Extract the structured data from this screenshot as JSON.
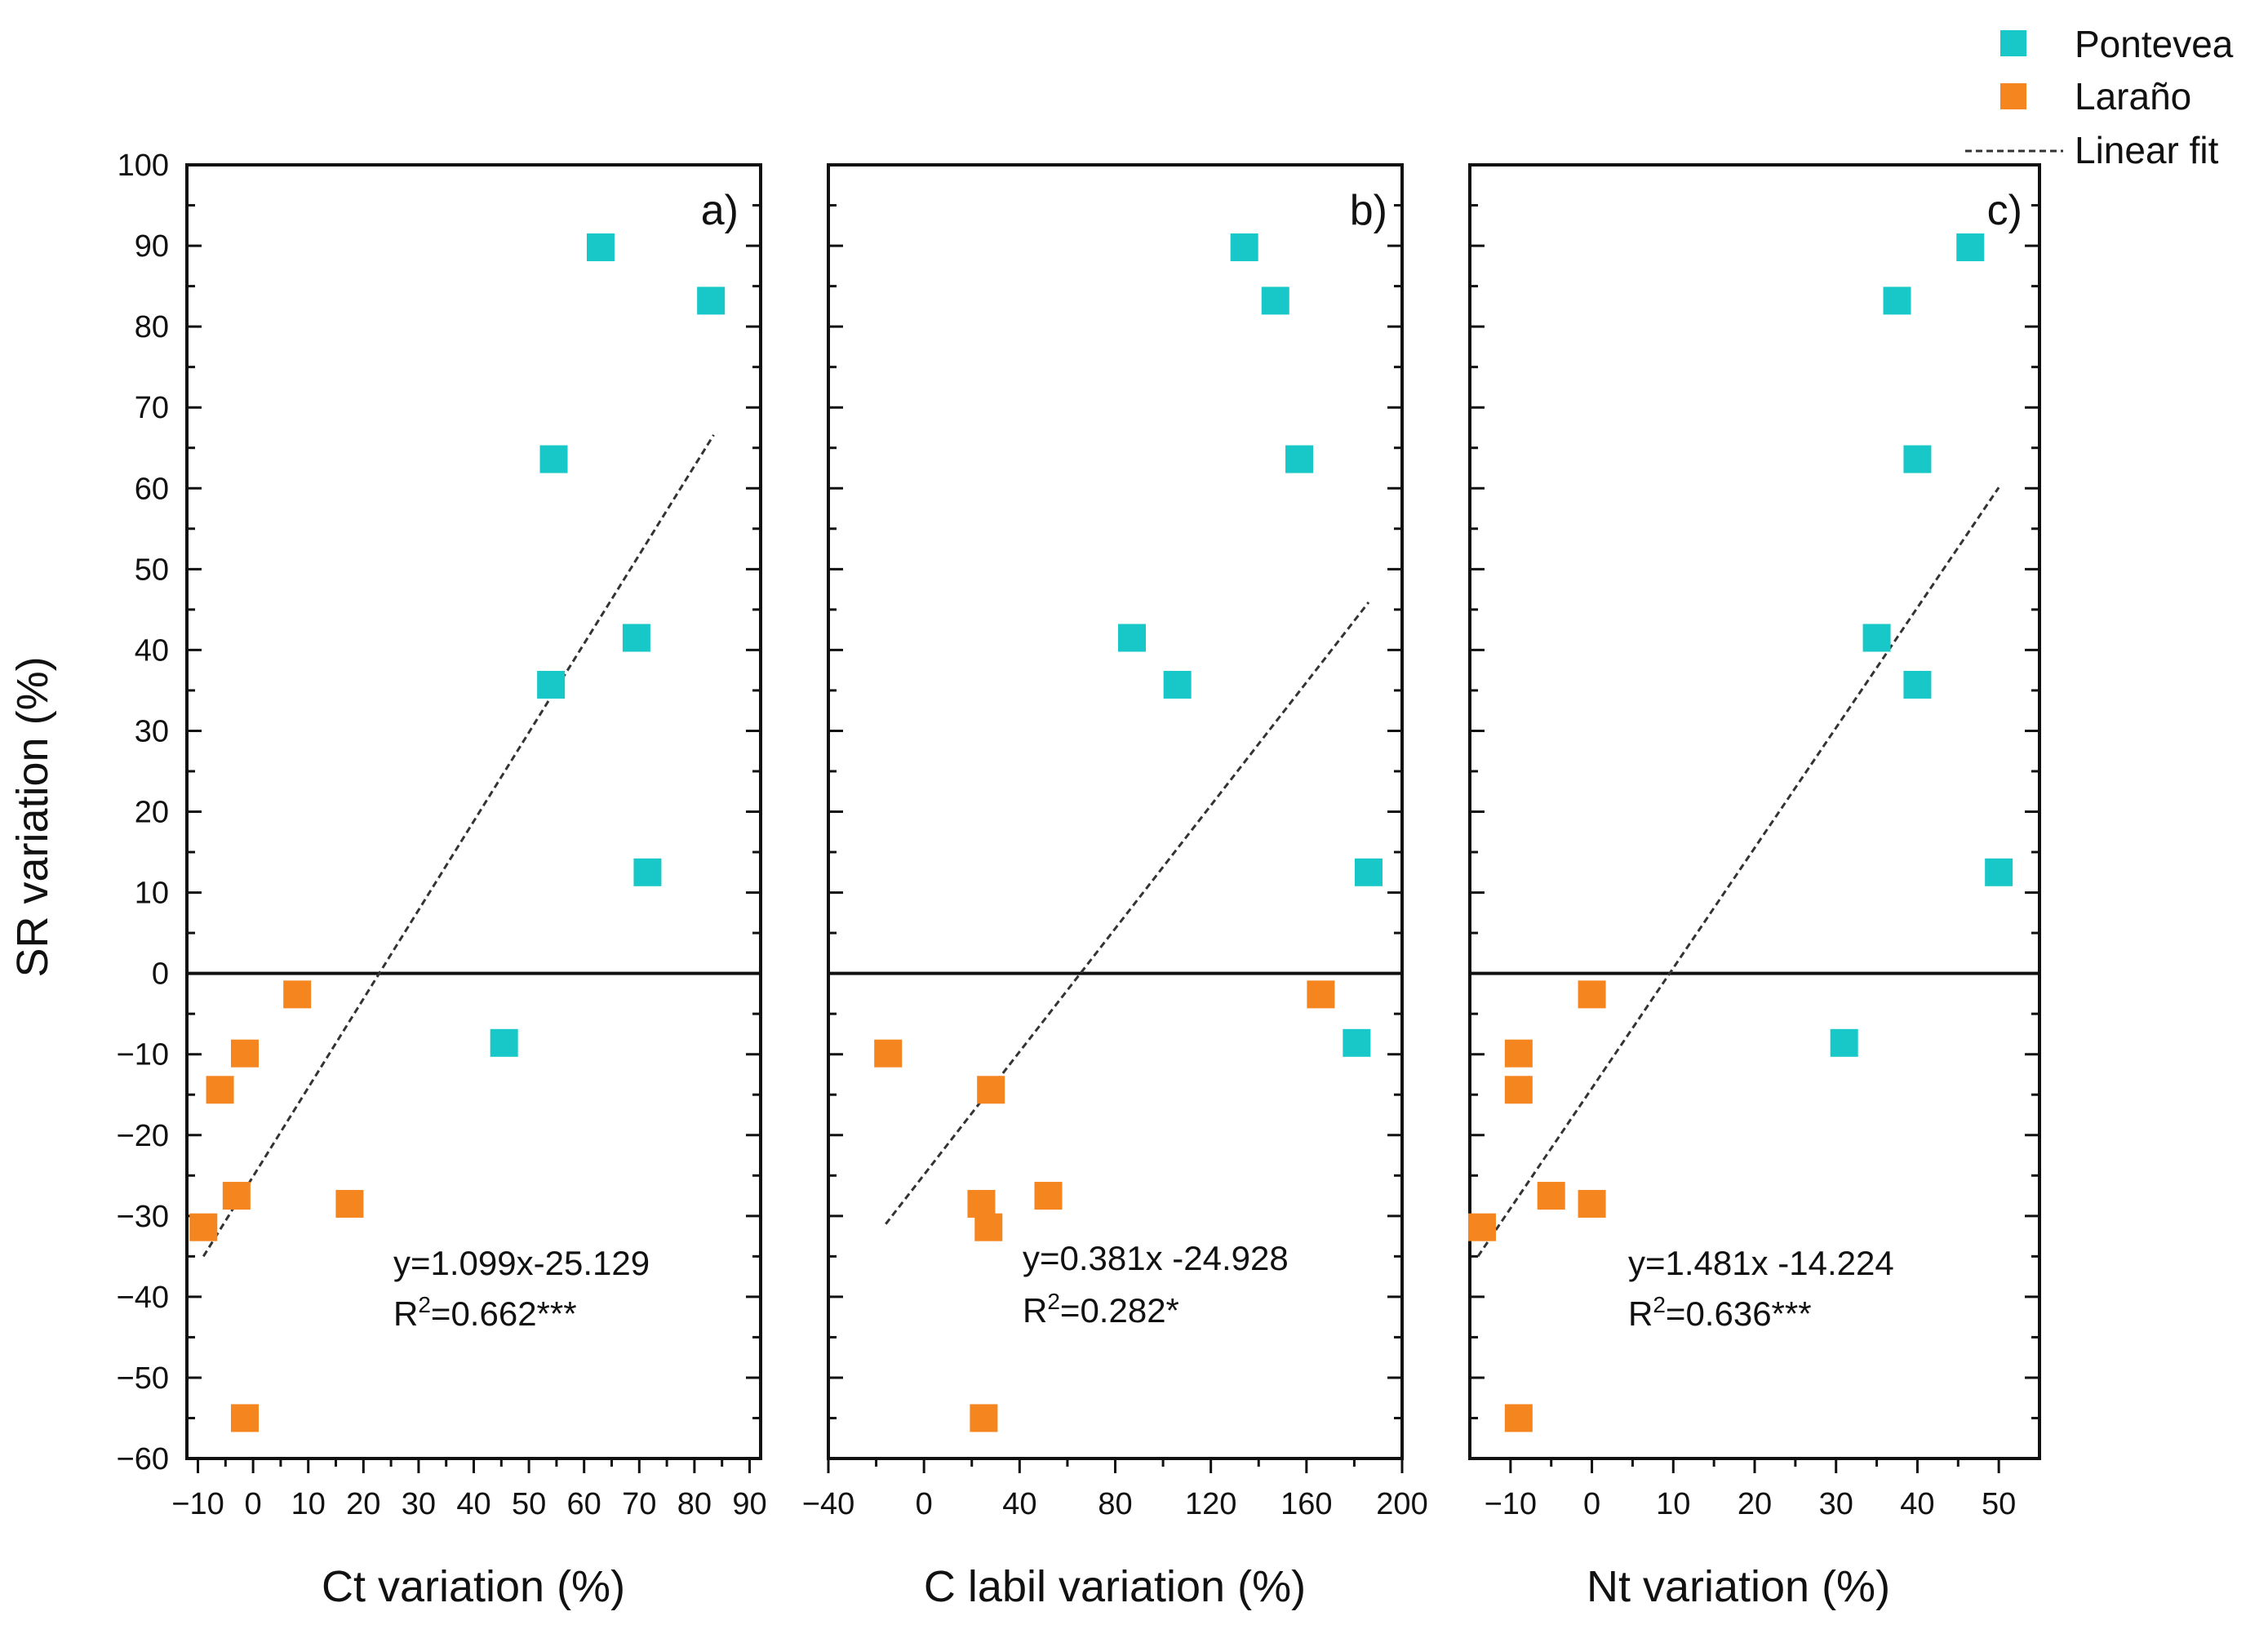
{
  "colors": {
    "pontevea": "#18c8c8",
    "larano": "#f5851f",
    "axis": "#111111",
    "fit": "#333333"
  },
  "legend": {
    "entries": [
      {
        "label": "Pontevea",
        "type": "marker",
        "color": "#18c8c8"
      },
      {
        "label": "Laraño",
        "type": "marker",
        "color": "#f5851f"
      },
      {
        "label": "Linear fit",
        "type": "dashed-line",
        "color": "#333333"
      }
    ]
  },
  "y_axis": {
    "label": "SR variation (%)",
    "ylim": [
      -60,
      100
    ],
    "ticks": [
      -60,
      -50,
      -40,
      -30,
      -20,
      -10,
      0,
      10,
      20,
      30,
      40,
      50,
      60,
      70,
      80,
      90,
      100
    ],
    "tick_labels": [
      "−60",
      "−50",
      "−40",
      "−30",
      "−20",
      "−10",
      "0",
      "10",
      "20",
      "30",
      "40",
      "50",
      "60",
      "70",
      "80",
      "90",
      "100"
    ]
  },
  "chart_data": [
    {
      "type": "scatter",
      "panel_label": "a)",
      "xlabel": "Ct variation (%)",
      "ylabel": "SR variation (%)",
      "xlim": [
        -12,
        92
      ],
      "ylim": [
        -60,
        100
      ],
      "xticks": [
        -10,
        0,
        10,
        20,
        30,
        40,
        50,
        60,
        70,
        80,
        90
      ],
      "xtick_labels": [
        "−10",
        "0",
        "10",
        "20",
        "30",
        "40",
        "50",
        "60",
        "70",
        "80",
        "90"
      ],
      "series": [
        {
          "name": "Pontevea",
          "color": "#18c8c8",
          "points": [
            [
              63,
              89.8
            ],
            [
              83,
              83.2
            ],
            [
              54.5,
              63.6
            ],
            [
              69.5,
              41.5
            ],
            [
              54,
              35.7
            ],
            [
              71.5,
              12.5
            ],
            [
              45.5,
              -8.6
            ]
          ]
        },
        {
          "name": "Laraño",
          "color": "#f5851f",
          "points": [
            [
              8,
              -2.6
            ],
            [
              -1.5,
              -9.9
            ],
            [
              -6,
              -14.4
            ],
            [
              -3,
              -27.5
            ],
            [
              -9,
              -31.4
            ],
            [
              17.5,
              -28.5
            ],
            [
              -1.5,
              -55
            ]
          ]
        }
      ],
      "fit": {
        "x_range": [
          -9,
          83.5
        ],
        "y_range": [
          -35,
          66.6
        ],
        "equation": "y=1.099x-25.129",
        "r2_prefix": "R",
        "r2_sup": "2",
        "r2_value": "=0.662***"
      }
    },
    {
      "type": "scatter",
      "panel_label": "b)",
      "xlabel": "C labil variation (%)",
      "ylabel": "SR variation (%)",
      "xlim": [
        -40,
        200
      ],
      "ylim": [
        -60,
        100
      ],
      "xticks": [
        -40,
        0,
        40,
        80,
        120,
        160,
        200
      ],
      "xtick_labels": [
        "−40",
        "0",
        "40",
        "80",
        "120",
        "160",
        "200"
      ],
      "series": [
        {
          "name": "Pontevea",
          "color": "#18c8c8",
          "points": [
            [
              134,
              89.8
            ],
            [
              147,
              83.2
            ],
            [
              157,
              63.6
            ],
            [
              87,
              41.5
            ],
            [
              106,
              35.7
            ],
            [
              186,
              12.5
            ],
            [
              181,
              -8.6
            ]
          ]
        },
        {
          "name": "Laraño",
          "color": "#f5851f",
          "points": [
            [
              166,
              -2.6
            ],
            [
              -15,
              -9.9
            ],
            [
              28,
              -14.4
            ],
            [
              52,
              -27.5
            ],
            [
              24,
              -28.5
            ],
            [
              27,
              -31.4
            ],
            [
              25,
              -55
            ]
          ]
        }
      ],
      "fit": {
        "x_range": [
          -16,
          186
        ],
        "y_range": [
          -31,
          45.9
        ],
        "equation": "y=0.381x -24.928",
        "r2_prefix": "R",
        "r2_sup": "2",
        "r2_value": "=0.282*"
      }
    },
    {
      "type": "scatter",
      "panel_label": "c)",
      "xlabel": "Nt variation (%)",
      "ylabel": "SR variation (%)",
      "xlim": [
        -15,
        55
      ],
      "ylim": [
        -60,
        100
      ],
      "xticks": [
        -10,
        0,
        10,
        20,
        30,
        40,
        50
      ],
      "xtick_labels": [
        "−10",
        "0",
        "10",
        "20",
        "30",
        "40",
        "50"
      ],
      "series": [
        {
          "name": "Pontevea",
          "color": "#18c8c8",
          "points": [
            [
              46.5,
              89.8
            ],
            [
              37.5,
              83.2
            ],
            [
              40,
              63.6
            ],
            [
              35,
              41.5
            ],
            [
              40,
              35.7
            ],
            [
              50,
              12.5
            ],
            [
              31,
              -8.6
            ]
          ]
        },
        {
          "name": "Laraño",
          "color": "#f5851f",
          "points": [
            [
              0,
              -2.6
            ],
            [
              -9,
              -9.9
            ],
            [
              -9,
              -14.4
            ],
            [
              -5,
              -27.5
            ],
            [
              0,
              -28.5
            ],
            [
              -13.5,
              -31.4
            ],
            [
              -9,
              -55
            ]
          ]
        }
      ],
      "fit": {
        "x_range": [
          -14,
          50
        ],
        "y_range": [
          -35,
          60.1
        ],
        "equation": "y=1.481x -14.224",
        "r2_prefix": "R",
        "r2_sup": "2",
        "r2_value": "=0.636***"
      }
    }
  ]
}
